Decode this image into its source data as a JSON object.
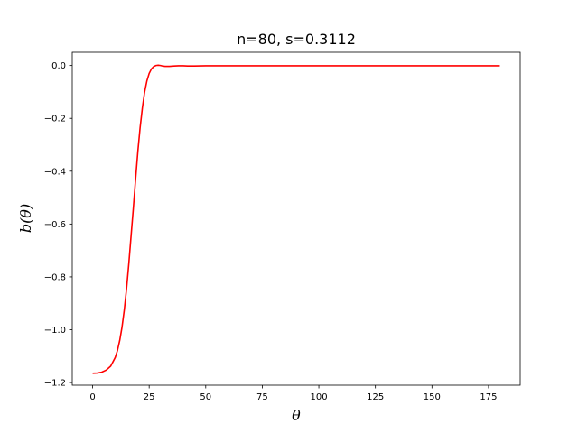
{
  "chart_data": {
    "type": "line",
    "title": "n=80, s=0.3112",
    "xlabel": "θ",
    "ylabel": "b(θ)",
    "xlim": [
      -9,
      189
    ],
    "ylim": [
      -1.21,
      0.05
    ],
    "xticks": [
      0,
      25,
      50,
      75,
      100,
      125,
      150,
      175
    ],
    "yticks": [
      0.0,
      -0.2,
      -0.4,
      -0.6,
      -0.8,
      -1.0,
      -1.2
    ],
    "xtick_labels": [
      "0",
      "25",
      "50",
      "75",
      "100",
      "125",
      "150",
      "175"
    ],
    "ytick_labels": [
      "0.0",
      "−0.2",
      "−0.4",
      "−0.6",
      "−0.8",
      "−1.0",
      "−1.2"
    ],
    "grid": false,
    "series": [
      {
        "color": "#ff0000",
        "x": [
          0,
          2,
          4,
          6,
          8,
          10,
          11,
          12,
          13,
          14,
          15,
          16,
          17,
          18,
          19,
          20,
          21,
          22,
          23,
          24,
          25,
          26,
          27,
          28,
          29,
          30,
          31,
          32,
          34,
          36,
          38,
          40,
          42,
          45,
          50,
          60,
          80,
          100,
          120,
          140,
          160,
          180
        ],
        "y": [
          -1.165,
          -1.164,
          -1.161,
          -1.153,
          -1.138,
          -1.105,
          -1.078,
          -1.04,
          -0.99,
          -0.925,
          -0.845,
          -0.75,
          -0.645,
          -0.54,
          -0.43,
          -0.325,
          -0.235,
          -0.16,
          -0.1,
          -0.058,
          -0.03,
          -0.013,
          -0.004,
          0.0,
          0.001,
          0.0,
          -0.002,
          -0.003,
          -0.003,
          -0.002,
          -0.001,
          -0.001,
          -0.002,
          -0.002,
          -0.001,
          -0.001,
          -0.001,
          -0.001,
          -0.001,
          -0.001,
          -0.001,
          -0.001
        ]
      }
    ]
  }
}
